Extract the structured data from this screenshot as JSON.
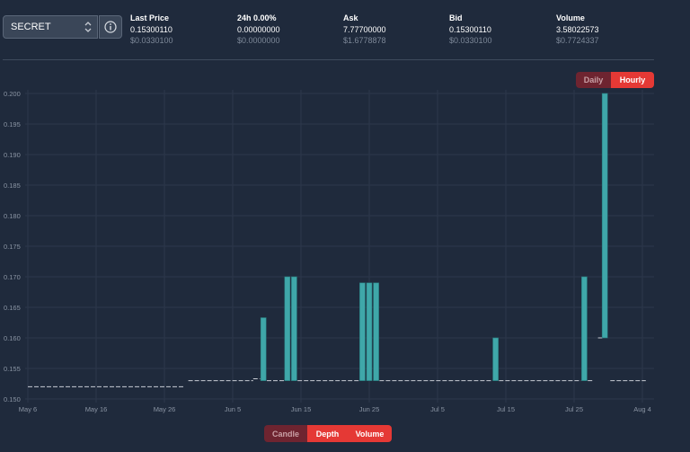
{
  "selector": {
    "value": "SECRET",
    "icon": "chevron-updown-icon"
  },
  "info_icon": "info-icon",
  "stats": [
    {
      "title": "Last Price",
      "value": "0.15300110",
      "usd": "$0.0330100"
    },
    {
      "title": "24h 0.00%",
      "value": "0.00000000",
      "usd": "$0.0000000"
    },
    {
      "title": "Ask",
      "value": "7.77700000",
      "usd": "$1.6778878"
    },
    {
      "title": "Bid",
      "value": "0.15300110",
      "usd": "$0.0330100"
    },
    {
      "title": "Volume",
      "value": "3.58022573",
      "usd": "$0.7724337"
    }
  ],
  "interval": {
    "options": [
      "Daily",
      "Hourly"
    ],
    "selected": "Hourly"
  },
  "views": {
    "options": [
      "Candle",
      "Depth",
      "Volume"
    ],
    "selected": [
      "Depth",
      "Volume"
    ]
  },
  "colors": {
    "up": "#3fa7a9",
    "down": "#d0536e",
    "flat": "#c8ccd4",
    "accent": "#e53935"
  },
  "chart_data": {
    "type": "candlestick",
    "ylim": [
      0.15,
      0.2
    ],
    "yticks": [
      "0.150",
      "0.155",
      "0.160",
      "0.165",
      "0.170",
      "0.175",
      "0.180",
      "0.185",
      "0.190",
      "0.195",
      "0.200"
    ],
    "xticks": [
      {
        "label": "May 6",
        "day": 0
      },
      {
        "label": "May 16",
        "day": 10
      },
      {
        "label": "May 26",
        "day": 20
      },
      {
        "label": "Jun 5",
        "day": 30
      },
      {
        "label": "Jun 15",
        "day": 40
      },
      {
        "label": "Jun 25",
        "day": 50
      },
      {
        "label": "Jul 5",
        "day": 60
      },
      {
        "label": "Jul 15",
        "day": 70
      },
      {
        "label": "Jul 25",
        "day": 80
      },
      {
        "label": "Aug 4",
        "day": 90
      }
    ],
    "grid": true,
    "candles": [
      {
        "day": 34.5,
        "open": 0.153,
        "close": 0.1633
      },
      {
        "day": 38.0,
        "open": 0.153,
        "close": 0.17
      },
      {
        "day": 39.0,
        "open": 0.153,
        "close": 0.17
      },
      {
        "day": 49.0,
        "open": 0.153,
        "close": 0.169
      },
      {
        "day": 50.0,
        "open": 0.153,
        "close": 0.169
      },
      {
        "day": 51.0,
        "open": 0.153,
        "close": 0.169
      },
      {
        "day": 68.5,
        "open": 0.153,
        "close": 0.16
      },
      {
        "day": 81.5,
        "open": 0.153,
        "close": 0.17
      },
      {
        "day": 84.5,
        "open": 0.16,
        "close": 0.2
      }
    ],
    "flat_segments": [
      {
        "from": 0,
        "to": 23,
        "value": 0.152
      },
      {
        "from": 23.5,
        "to": 33,
        "value": 0.153
      },
      {
        "from": 33,
        "to": 34,
        "value": 0.1533
      },
      {
        "from": 35,
        "to": 37.5,
        "value": 0.153
      },
      {
        "from": 39.5,
        "to": 48.5,
        "value": 0.153
      },
      {
        "from": 51.5,
        "to": 68,
        "value": 0.153
      },
      {
        "from": 69,
        "to": 81,
        "value": 0.153
      },
      {
        "from": 82,
        "to": 82.8,
        "value": 0.153
      },
      {
        "from": 83.5,
        "to": 84.2,
        "value": 0.16
      },
      {
        "from": 85.3,
        "to": 90.5,
        "value": 0.153
      }
    ]
  }
}
